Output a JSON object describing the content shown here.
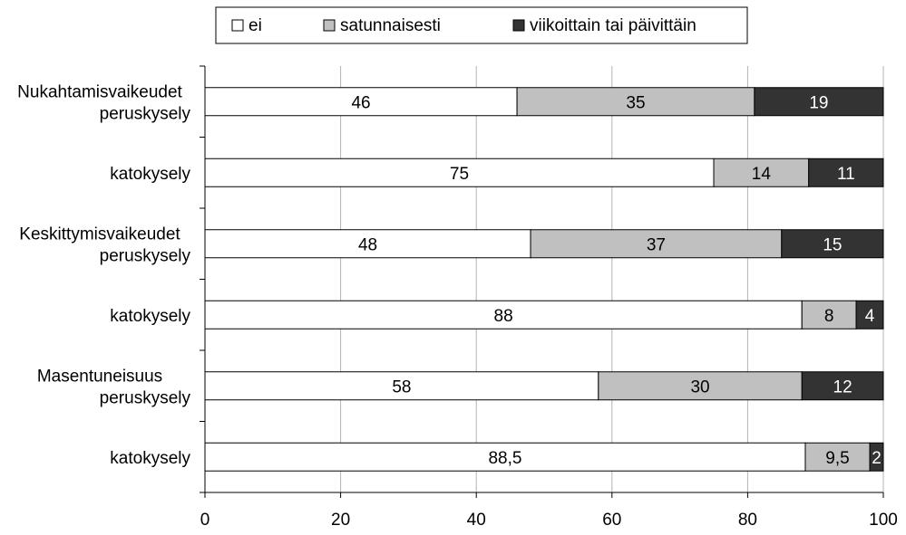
{
  "chart_data": {
    "type": "bar",
    "orientation": "horizontal",
    "stacked": true,
    "title": "",
    "xlabel": "",
    "ylabel": "",
    "xlim": [
      0,
      100
    ],
    "x_ticks": [
      0,
      20,
      40,
      60,
      80,
      100
    ],
    "grid": "vertical",
    "legend_position": "top",
    "categories": [
      [
        "Nukahtamisvaikeudet",
        "peruskysely"
      ],
      [
        "katokysely"
      ],
      [
        "Keskittymisvaikeudet",
        "peruskysely"
      ],
      [
        "katokysely"
      ],
      [
        "Masentuneisuus",
        "peruskysely"
      ],
      [
        "katokysely"
      ]
    ],
    "series": [
      {
        "name": "ei",
        "color": "#ffffff",
        "values": [
          46,
          75,
          48,
          88,
          58,
          88.5
        ],
        "labels": [
          "46",
          "75",
          "48",
          "88",
          "58",
          "88,5"
        ]
      },
      {
        "name": "satunnaisesti",
        "color": "#c0c0c0",
        "values": [
          35,
          14,
          37,
          8,
          30,
          9.5
        ],
        "labels": [
          "35",
          "14",
          "37",
          "8",
          "30",
          "9,5"
        ]
      },
      {
        "name": "viikoittain tai päivittäin",
        "color": "#333333",
        "values": [
          19,
          11,
          15,
          4,
          12,
          2
        ],
        "labels": [
          "19",
          "11",
          "15",
          "4",
          "12",
          "2"
        ]
      }
    ]
  }
}
